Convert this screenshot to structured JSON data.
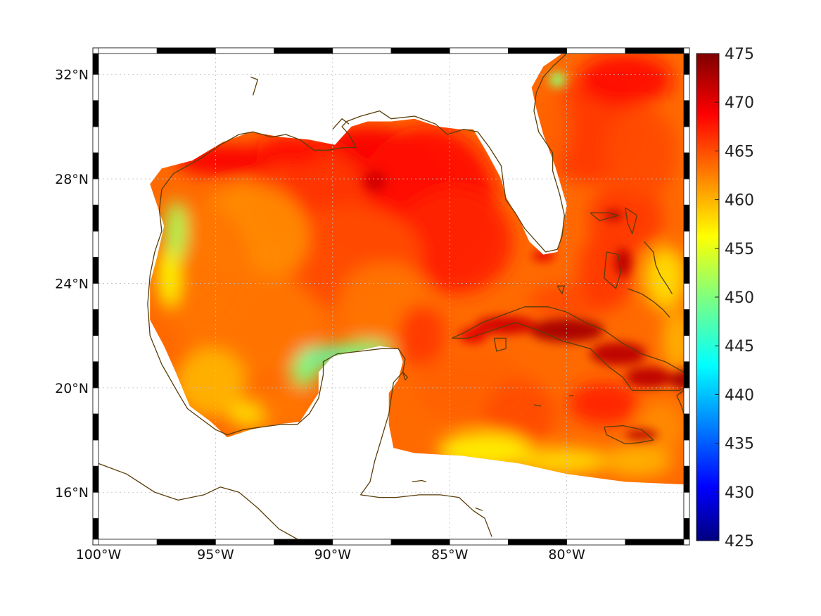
{
  "map": {
    "type": "heatmap",
    "projection": "lon-lat",
    "lon_range": [
      -100,
      -75
    ],
    "lat_range": [
      14.2,
      32.8
    ],
    "lon_ticks": [
      {
        "value": -100,
        "label": "100°W"
      },
      {
        "value": -95,
        "label": "95°W"
      },
      {
        "value": -90,
        "label": "90°W"
      },
      {
        "value": -85,
        "label": "85°W"
      },
      {
        "value": -80,
        "label": "80°W"
      }
    ],
    "lat_ticks": [
      {
        "value": 16,
        "label": "16°N"
      },
      {
        "value": 20,
        "label": "20°N"
      },
      {
        "value": 24,
        "label": "24°N"
      },
      {
        "value": 28,
        "label": "28°N"
      },
      {
        "value": 32,
        "label": "32°N"
      }
    ],
    "grid": true,
    "frame_style": "black-and-white dashed border",
    "coastline_color": "#5a3d0a"
  },
  "colorbar": {
    "position": "right",
    "vmin": 425,
    "vmax": 475,
    "ticks": [
      "425",
      "430",
      "435",
      "440",
      "445",
      "450",
      "455",
      "460",
      "465",
      "470",
      "475"
    ],
    "colormap": "jet"
  },
  "chart_data": {
    "type": "heatmap",
    "xlabel": "",
    "ylabel": "",
    "title": "",
    "value_range": [
      425,
      475
    ],
    "fields": [
      {
        "region": "central and northern Gulf of Mexico",
        "approx_value": 467
      },
      {
        "region": "western Gulf of Mexico",
        "approx_value": 462
      },
      {
        "region": "north coast of Yucatan / Campeche Bank",
        "approx_value": 447
      },
      {
        "region": "Texas coast near 26°N",
        "approx_value": 455
      },
      {
        "region": "along Cuba and Hispaniola coasts",
        "approx_value": 473
      },
      {
        "region": "Atlantic east of Florida",
        "approx_value": 465
      },
      {
        "region": "coast near 32°N 80.5°W",
        "approx_value": 452
      },
      {
        "region": "northwestern Caribbean near 17.5°N",
        "approx_value": 455
      }
    ]
  }
}
